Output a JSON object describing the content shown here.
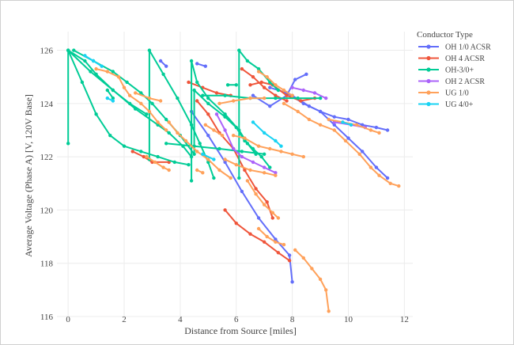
{
  "chart_data": {
    "type": "scatter",
    "title": "",
    "xlabel": "Distance from Source [miles]",
    "ylabel": "Average Voltage (Phase A) [V, 120V Base]",
    "xlim": [
      -0.4,
      12.3
    ],
    "ylim": [
      116,
      126.7
    ],
    "xticks": [
      0,
      2,
      4,
      6,
      8,
      10,
      12
    ],
    "yticks": [
      116,
      118,
      120,
      122,
      124,
      126
    ],
    "grid": true,
    "legend": {
      "title": "Conductor Type",
      "placement": "top-right"
    },
    "series": [
      {
        "name": "OH 1/0 ACSR",
        "color": "#636efa",
        "segments": [
          [
            [
              4.4,
              123.7
            ],
            [
              5.0,
              122.8
            ],
            [
              5.6,
              121.8
            ],
            [
              6.2,
              120.7
            ],
            [
              6.8,
              119.7
            ],
            [
              7.4,
              118.9
            ],
            [
              7.9,
              118.3
            ],
            [
              8.0,
              117.3
            ]
          ],
          [
            [
              6.6,
              124.3
            ],
            [
              7.2,
              123.9
            ],
            [
              7.8,
              124.3
            ],
            [
              8.1,
              124.9
            ],
            [
              8.5,
              125.1
            ]
          ],
          [
            [
              7.2,
              124.6
            ],
            [
              7.8,
              124.4
            ],
            [
              8.4,
              124.0
            ],
            [
              9.0,
              123.7
            ],
            [
              9.5,
              123.5
            ],
            [
              10.0,
              123.4
            ],
            [
              10.5,
              123.2
            ],
            [
              11.0,
              123.1
            ],
            [
              11.4,
              123.0
            ]
          ],
          [
            [
              8.0,
              124.3
            ],
            [
              8.6,
              123.9
            ],
            [
              9.0,
              123.7
            ],
            [
              9.5,
              123.2
            ],
            [
              10.0,
              122.7
            ],
            [
              10.5,
              122.2
            ],
            [
              11.0,
              121.6
            ],
            [
              11.4,
              121.2
            ]
          ],
          [
            [
              3.3,
              125.6
            ],
            [
              3.5,
              125.4
            ]
          ],
          [
            [
              4.6,
              125.5
            ],
            [
              4.9,
              125.4
            ]
          ]
        ]
      },
      {
        "name": "OH 4 ACSR",
        "color": "#ef553b",
        "segments": [
          [
            [
              2.3,
              122.2
            ],
            [
              2.7,
              122.0
            ],
            [
              3.0,
              121.8
            ],
            [
              3.6,
              121.8
            ]
          ],
          [
            [
              4.6,
              124.1
            ],
            [
              5.0,
              123.6
            ],
            [
              5.4,
              122.9
            ],
            [
              5.9,
              122.3
            ],
            [
              6.3,
              121.5
            ],
            [
              6.7,
              120.8
            ],
            [
              7.1,
              120.3
            ],
            [
              7.3,
              119.7
            ]
          ],
          [
            [
              5.6,
              120.0
            ],
            [
              6.0,
              119.5
            ],
            [
              6.5,
              119.1
            ],
            [
              7.0,
              118.8
            ],
            [
              7.5,
              118.4
            ],
            [
              7.9,
              118.1
            ]
          ],
          [
            [
              6.5,
              124.7
            ],
            [
              6.9,
              124.8
            ],
            [
              7.3,
              124.7
            ],
            [
              7.8,
              124.3
            ],
            [
              8.3,
              124.1
            ],
            [
              8.8,
              124.2
            ]
          ],
          [
            [
              4.3,
              124.8
            ],
            [
              4.8,
              124.6
            ],
            [
              5.3,
              124.4
            ],
            [
              5.8,
              124.3
            ]
          ],
          [
            [
              6.2,
              125.3
            ],
            [
              6.6,
              125.0
            ],
            [
              7.0,
              124.6
            ],
            [
              7.4,
              124.3
            ],
            [
              7.8,
              124.1
            ]
          ]
        ]
      },
      {
        "name": "OH-3/0+",
        "color": "#00cc96",
        "segments": [
          [
            [
              0.0,
              122.5
            ],
            [
              0.0,
              126.0
            ],
            [
              0.6,
              125.6
            ],
            [
              1.0,
              125.1
            ],
            [
              1.6,
              124.5
            ],
            [
              2.2,
              124.0
            ],
            [
              2.8,
              123.6
            ]
          ],
          [
            [
              0.0,
              126.0
            ],
            [
              0.8,
              125.2
            ],
            [
              1.6,
              124.5
            ],
            [
              2.4,
              123.8
            ],
            [
              3.2,
              123.2
            ],
            [
              3.6,
              122.9
            ],
            [
              4.1,
              122.4
            ],
            [
              4.4,
              122.0
            ]
          ],
          [
            [
              0.0,
              126.0
            ],
            [
              0.5,
              124.8
            ],
            [
              1.0,
              123.6
            ],
            [
              1.5,
              122.8
            ],
            [
              2.0,
              122.4
            ],
            [
              2.6,
              122.2
            ],
            [
              3.2,
              122.0
            ],
            [
              3.8,
              121.8
            ],
            [
              4.3,
              121.7
            ]
          ],
          [
            [
              0.2,
              126.0
            ],
            [
              0.9,
              125.6
            ],
            [
              1.6,
              125.2
            ],
            [
              2.1,
              124.8
            ],
            [
              2.6,
              124.4
            ],
            [
              3.0,
              124.0
            ],
            [
              3.5,
              123.4
            ],
            [
              4.0,
              122.8
            ],
            [
              4.5,
              122.1
            ],
            [
              4.5,
              124.5
            ],
            [
              5.0,
              124.0
            ],
            [
              5.6,
              123.5
            ],
            [
              6.0,
              123.1
            ],
            [
              6.3,
              122.6
            ],
            [
              6.6,
              122.3
            ],
            [
              6.9,
              122.0
            ],
            [
              7.2,
              121.6
            ]
          ],
          [
            [
              2.9,
              121.9
            ],
            [
              2.9,
              126.0
            ],
            [
              3.4,
              125.1
            ],
            [
              3.9,
              124.2
            ],
            [
              4.4,
              123.2
            ],
            [
              4.7,
              122.5
            ],
            [
              5.0,
              121.8
            ],
            [
              5.2,
              121.2
            ]
          ],
          [
            [
              4.4,
              121.1
            ],
            [
              4.4,
              125.6
            ],
            [
              4.6,
              124.8
            ],
            [
              5.0,
              124.2
            ],
            [
              5.6,
              123.6
            ],
            [
              6.1,
              123.0
            ],
            [
              6.4,
              122.5
            ],
            [
              6.7,
              122.1
            ]
          ],
          [
            [
              6.1,
              121.2
            ],
            [
              6.1,
              126.0
            ],
            [
              6.4,
              125.6
            ],
            [
              6.8,
              125.3
            ],
            [
              7.2,
              124.8
            ],
            [
              7.5,
              124.5
            ]
          ],
          [
            [
              3.5,
              122.5
            ],
            [
              4.5,
              122.4
            ],
            [
              5.4,
              122.3
            ],
            [
              6.2,
              122.2
            ],
            [
              7.0,
              122.1
            ]
          ],
          [
            [
              4.8,
              124.3
            ],
            [
              5.6,
              124.3
            ],
            [
              6.5,
              124.2
            ],
            [
              7.4,
              124.2
            ],
            [
              8.2,
              124.2
            ],
            [
              9.0,
              124.2
            ]
          ],
          [
            [
              5.7,
              124.7
            ],
            [
              6.0,
              124.7
            ]
          ],
          [
            [
              1.4,
              124.5
            ],
            [
              1.6,
              124.2
            ]
          ]
        ]
      },
      {
        "name": "OH 2 ACSR",
        "color": "#ab63fa",
        "segments": [
          [
            [
              5.3,
              123.6
            ],
            [
              5.6,
              123.0
            ],
            [
              5.9,
              122.3
            ],
            [
              6.2,
              122.0
            ],
            [
              6.6,
              121.8
            ],
            [
              7.0,
              121.6
            ],
            [
              7.4,
              121.4
            ]
          ],
          [
            [
              8.0,
              124.6
            ],
            [
              8.4,
              124.5
            ],
            [
              8.8,
              124.4
            ],
            [
              9.2,
              124.2
            ]
          ],
          [
            [
              9.5,
              123.3
            ],
            [
              10.1,
              123.2
            ],
            [
              10.6,
              123.1
            ]
          ]
        ]
      },
      {
        "name": "UG 1/0",
        "color": "#ffa15a",
        "segments": [
          [
            [
              1.0,
              125.3
            ],
            [
              1.4,
              125.2
            ],
            [
              1.8,
              125.0
            ],
            [
              2.0,
              124.6
            ],
            [
              2.2,
              124.3
            ],
            [
              2.6,
              124.0
            ],
            [
              2.9,
              123.7
            ],
            [
              3.2,
              123.3
            ],
            [
              3.5,
              123.0
            ]
          ],
          [
            [
              2.4,
              124.4
            ],
            [
              2.9,
              124.2
            ],
            [
              3.3,
              124.1
            ]
          ],
          [
            [
              3.6,
              123.3
            ],
            [
              3.9,
              122.9
            ],
            [
              4.2,
              122.6
            ],
            [
              4.6,
              122.2
            ],
            [
              5.0,
              121.9
            ],
            [
              5.4,
              121.5
            ],
            [
              5.8,
              121.2
            ]
          ],
          [
            [
              2.8,
              122.0
            ],
            [
              3.1,
              121.8
            ],
            [
              3.4,
              121.6
            ],
            [
              3.6,
              121.5
            ]
          ],
          [
            [
              5.6,
              121.9
            ],
            [
              6.0,
              121.7
            ],
            [
              6.5,
              121.5
            ],
            [
              7.0,
              121.4
            ],
            [
              7.4,
              121.3
            ]
          ],
          [
            [
              5.9,
              122.8
            ],
            [
              6.3,
              122.7
            ],
            [
              6.8,
              122.4
            ],
            [
              7.2,
              122.3
            ],
            [
              7.6,
              122.2
            ],
            [
              8.0,
              122.1
            ],
            [
              8.4,
              122.0
            ]
          ],
          [
            [
              6.4,
              121.1
            ],
            [
              6.7,
              120.6
            ],
            [
              7.0,
              120.2
            ],
            [
              7.3,
              119.9
            ],
            [
              7.5,
              119.7
            ]
          ],
          [
            [
              4.9,
              123.2
            ],
            [
              5.2,
              123.0
            ],
            [
              5.5,
              122.8
            ]
          ],
          [
            [
              4.6,
              121.5
            ],
            [
              4.8,
              121.4
            ]
          ],
          [
            [
              6.8,
              119.3
            ],
            [
              7.1,
              119.0
            ],
            [
              7.4,
              118.8
            ],
            [
              7.7,
              118.7
            ]
          ],
          [
            [
              8.1,
              118.5
            ],
            [
              8.4,
              118.2
            ],
            [
              8.7,
              117.8
            ],
            [
              9.0,
              117.4
            ],
            [
              9.2,
              117.0
            ],
            [
              9.3,
              116.2
            ]
          ],
          [
            [
              5.4,
              124.0
            ],
            [
              5.9,
              124.1
            ],
            [
              6.5,
              124.2
            ],
            [
              7.0,
              124.2
            ]
          ],
          [
            [
              7.7,
              124.0
            ],
            [
              8.2,
              123.7
            ],
            [
              8.6,
              123.4
            ],
            [
              9.0,
              123.2
            ],
            [
              9.5,
              123.0
            ],
            [
              9.9,
              122.6
            ],
            [
              10.4,
              122.1
            ],
            [
              10.8,
              121.6
            ],
            [
              11.1,
              121.3
            ],
            [
              11.5,
              121.0
            ],
            [
              11.8,
              120.9
            ]
          ],
          [
            [
              9.3,
              123.4
            ],
            [
              9.8,
              123.3
            ],
            [
              10.3,
              123.2
            ],
            [
              10.8,
              123.0
            ],
            [
              11.1,
              122.9
            ]
          ],
          [
            [
              6.8,
              125.2
            ],
            [
              7.1,
              125.0
            ],
            [
              7.4,
              124.7
            ],
            [
              7.7,
              124.5
            ],
            [
              8.0,
              124.3
            ]
          ]
        ]
      },
      {
        "name": "UG 4/0+",
        "color": "#19d3f3",
        "segments": [
          [
            [
              0.6,
              125.8
            ],
            [
              0.9,
              125.6
            ],
            [
              1.2,
              125.4
            ]
          ],
          [
            [
              1.4,
              124.2
            ],
            [
              1.6,
              124.1
            ]
          ],
          [
            [
              4.8,
              122.1
            ],
            [
              5.2,
              121.9
            ]
          ],
          [
            [
              6.6,
              123.3
            ],
            [
              7.0,
              122.9
            ],
            [
              7.4,
              122.6
            ],
            [
              7.6,
              122.4
            ]
          ],
          [
            [
              9.8,
              123.3
            ],
            [
              10.1,
              123.2
            ]
          ]
        ]
      }
    ]
  }
}
